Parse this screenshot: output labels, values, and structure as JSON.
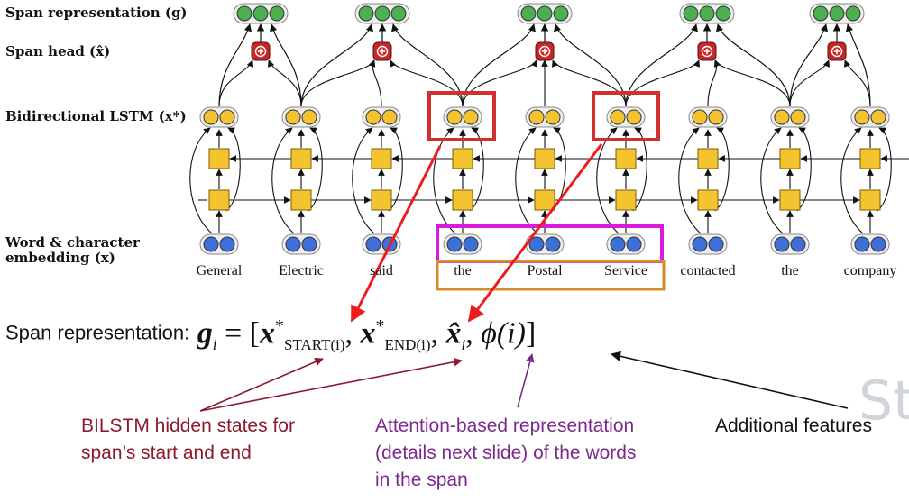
{
  "labels": {
    "span_representation": "Span representation (g)",
    "span_head": "Span head (x̂)",
    "bilstm": "Bidirectional LSTM (x*)",
    "embedding_line1": "Word & character",
    "embedding_line2": "embedding (x)"
  },
  "words": [
    "General",
    "Electric",
    "said",
    "the",
    "Postal",
    "Service",
    "contacted",
    "the",
    "company"
  ],
  "formula": {
    "prefix": "Span representation:",
    "g": "g",
    "i": "i",
    "eq": " = [",
    "x": "x",
    "star": "*",
    "start_sub": "START(i)",
    "end_sub": "END(i)",
    "comma": ", ",
    "xhat": "x̂",
    "phi": "ϕ(i)",
    "close": "]"
  },
  "annotations": {
    "bilstm_line1": "BILSTM hidden states for",
    "bilstm_line2": "span’s start and end",
    "attention_line1": "Attention-based representation",
    "attention_line2": "(details next slide) of the words",
    "attention_line3": "in the span",
    "additional": "Additional features"
  },
  "watermark": "Sta",
  "colors": {
    "span_node": "#4caf50",
    "head_node": "#c62828",
    "lstm_node": "#f4c430",
    "embed_node": "#3f6fd8",
    "highlight_red": "#d32f2f",
    "highlight_magenta": "#d81bdc",
    "highlight_orange": "#d98c2a",
    "annotation_red": "#8b1a2b",
    "annotation_purple": "#7b2a8c"
  },
  "icons": {
    "head_node": "plus-icon"
  }
}
